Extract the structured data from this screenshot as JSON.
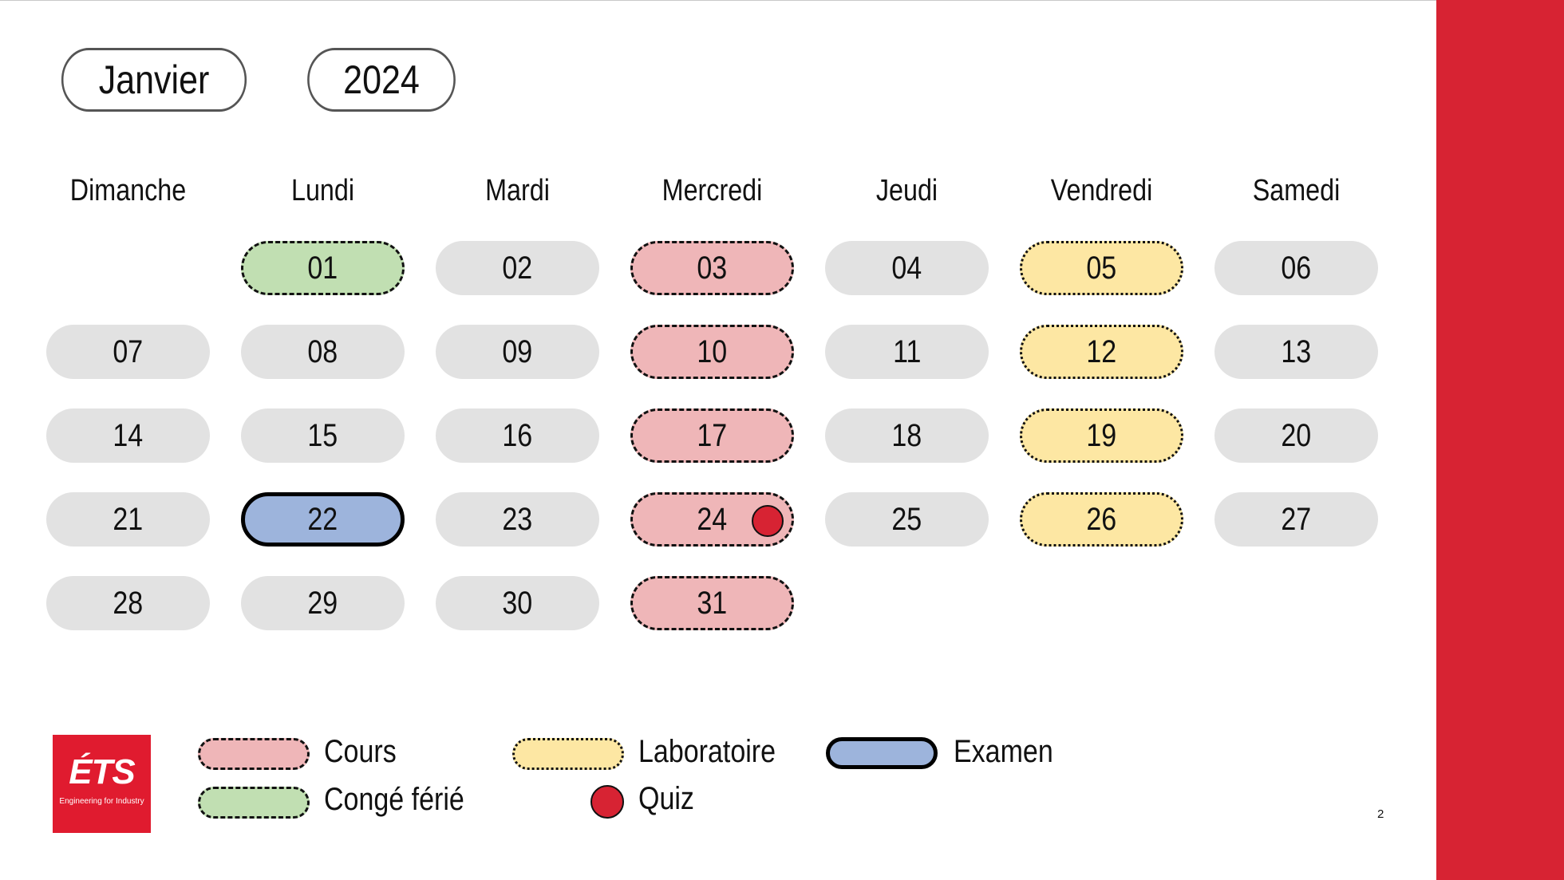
{
  "header": {
    "month": "Janvier",
    "year": "2024"
  },
  "weekdays": [
    "Dimanche",
    "Lundi",
    "Mardi",
    "Mercredi",
    "Jeudi",
    "Vendredi",
    "Samedi"
  ],
  "days": [
    {
      "label": "01",
      "type": "holiday"
    },
    {
      "label": "02",
      "type": "normal"
    },
    {
      "label": "03",
      "type": "cours"
    },
    {
      "label": "04",
      "type": "normal"
    },
    {
      "label": "05",
      "type": "labo"
    },
    {
      "label": "06",
      "type": "normal"
    },
    {
      "label": "07",
      "type": "normal"
    },
    {
      "label": "08",
      "type": "normal"
    },
    {
      "label": "09",
      "type": "normal"
    },
    {
      "label": "10",
      "type": "cours"
    },
    {
      "label": "11",
      "type": "normal"
    },
    {
      "label": "12",
      "type": "labo"
    },
    {
      "label": "13",
      "type": "normal"
    },
    {
      "label": "14",
      "type": "normal"
    },
    {
      "label": "15",
      "type": "normal"
    },
    {
      "label": "16",
      "type": "normal"
    },
    {
      "label": "17",
      "type": "cours"
    },
    {
      "label": "18",
      "type": "normal"
    },
    {
      "label": "19",
      "type": "labo"
    },
    {
      "label": "20",
      "type": "normal"
    },
    {
      "label": "21",
      "type": "normal"
    },
    {
      "label": "22",
      "type": "exam"
    },
    {
      "label": "23",
      "type": "normal"
    },
    {
      "label": "24",
      "type": "cours",
      "quiz": true
    },
    {
      "label": "25",
      "type": "normal"
    },
    {
      "label": "26",
      "type": "labo"
    },
    {
      "label": "27",
      "type": "normal"
    },
    {
      "label": "28",
      "type": "normal"
    },
    {
      "label": "29",
      "type": "normal"
    },
    {
      "label": "30",
      "type": "normal"
    },
    {
      "label": "31",
      "type": "cours"
    }
  ],
  "legend": {
    "cours": "Cours",
    "holiday": "Congé férié",
    "labo": "Laboratoire",
    "quiz": "Quiz",
    "exam": "Examen"
  },
  "logo": {
    "name": "ÉTS",
    "tagline": "Engineering for Industry"
  },
  "page_number": "2",
  "colors": {
    "accent_red": "#d72333",
    "cours": "#efb6b8",
    "labo": "#fde7a3",
    "holiday": "#c1dfb2",
    "exam": "#9db4dc",
    "normal": "#e2e2e2"
  }
}
